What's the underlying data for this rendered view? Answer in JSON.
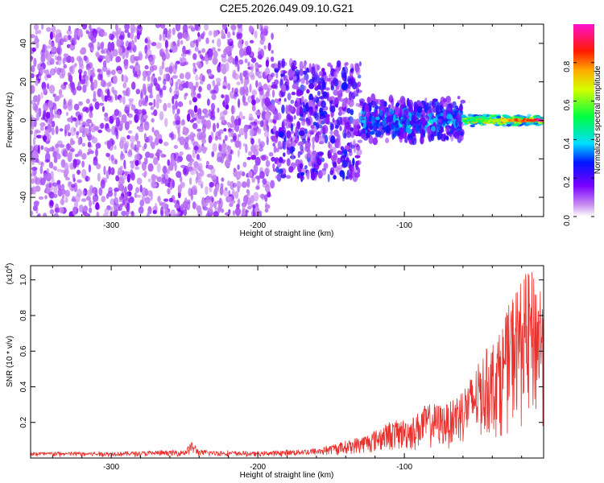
{
  "title": "C2E5.2026.049.09.10.G21",
  "chart_data": [
    {
      "type": "heatmap",
      "xlabel": "Height of straight line (km)",
      "ylabel": "Frequency (Hz)",
      "xlim": [
        -355,
        -5
      ],
      "ylim": [
        -50,
        50
      ],
      "x_ticks": [
        -300,
        -200,
        -100
      ],
      "x_tick_labels": [
        "-300",
        "-200",
        "-100"
      ],
      "y_ticks": [
        -40,
        -20,
        0,
        20,
        40
      ],
      "y_tick_labels": [
        "-40",
        "-20",
        "0",
        "20",
        "40"
      ],
      "colorbar": {
        "label": "Normalized spectral amplitude",
        "range": [
          0,
          1
        ],
        "ticks": [
          0.0,
          0.2,
          0.4,
          0.6,
          0.8
        ],
        "tick_labels": [
          "0.0",
          "0.2",
          "0.4",
          "0.6",
          "0.8"
        ],
        "colormap": "rainbow (white, violet, blue, cyan, green, yellow, red, magenta)"
      },
      "description_regions": [
        {
          "x_range": [
            -355,
            -190
          ],
          "freq_spread": 50,
          "amplitude": [
            0.02,
            0.12
          ]
        },
        {
          "x_range": [
            -190,
            -130
          ],
          "freq_spread": 30,
          "amplitude": [
            0.05,
            0.25
          ]
        },
        {
          "x_range": [
            -130,
            -60
          ],
          "freq_spread": 12,
          "amplitude": [
            0.1,
            0.45
          ]
        },
        {
          "x_range": [
            -60,
            -5
          ],
          "freq_spread": 3,
          "amplitude": [
            0.4,
            0.95
          ]
        }
      ],
      "grid": false
    },
    {
      "type": "line",
      "xlabel": "Height of straight line (km)",
      "ylabel": "SNR (10 * v/v)",
      "y_scale_label": "(x10",
      "y_scale_exp": "4",
      "y_scale_suffix": ")",
      "xlim": [
        -355,
        -5
      ],
      "ylim": [
        0,
        1.08
      ],
      "x_ticks": [
        -300,
        -200,
        -100
      ],
      "x_tick_labels": [
        "-300",
        "-200",
        "-100"
      ],
      "y_ticks": [
        0.2,
        0.4,
        0.6,
        0.8,
        1.0
      ],
      "y_tick_labels": [
        "0.2",
        "0.4",
        "0.6",
        "0.8",
        "1.0"
      ],
      "color": "#e8302c",
      "envelope": [
        {
          "x": -355,
          "y": 0.03
        },
        {
          "x": -300,
          "y": 0.03
        },
        {
          "x": -250,
          "y": 0.04
        },
        {
          "x": -245,
          "y": 0.09
        },
        {
          "x": -240,
          "y": 0.04
        },
        {
          "x": -200,
          "y": 0.03
        },
        {
          "x": -160,
          "y": 0.05
        },
        {
          "x": -140,
          "y": 0.09
        },
        {
          "x": -125,
          "y": 0.13
        },
        {
          "x": -110,
          "y": 0.2
        },
        {
          "x": -95,
          "y": 0.22
        },
        {
          "x": -85,
          "y": 0.3
        },
        {
          "x": -70,
          "y": 0.3
        },
        {
          "x": -55,
          "y": 0.45
        },
        {
          "x": -45,
          "y": 0.6
        },
        {
          "x": -35,
          "y": 0.7
        },
        {
          "x": -25,
          "y": 0.95
        },
        {
          "x": -15,
          "y": 1.05
        },
        {
          "x": -5,
          "y": 1.0
        }
      ],
      "grid": false
    }
  ]
}
